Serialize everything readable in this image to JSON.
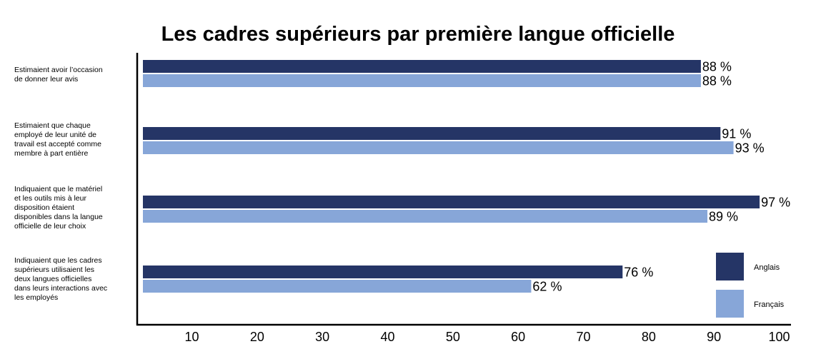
{
  "chart_data": {
    "type": "bar",
    "orientation": "horizontal",
    "title": "Les cadres supérieurs par première langue officielle",
    "xlabel": "",
    "ylabel": "",
    "xlim": [
      2.5,
      100
    ],
    "xticks": [
      10,
      20,
      30,
      40,
      50,
      60,
      70,
      80,
      90,
      100
    ],
    "grid": false,
    "legend_position": "bottom-right",
    "value_suffix": " %",
    "categories": [
      [
        "Estimaient avoir l’occasion",
        "de donner leur avis"
      ],
      [
        "Estimaient que chaque",
        "employé de leur unité de",
        "travail est accepté comme",
        "membre à part entière"
      ],
      [
        "Indiquaient que le matériel",
        "et les outils mis à leur",
        "disposition étaient",
        "disponibles dans la langue",
        "officielle de leur choix"
      ],
      [
        "Indiquaient que les cadres",
        "supérieurs utilisaient les",
        "deux langues officielles",
        "dans leurs interactions avec",
        "les employés"
      ]
    ],
    "series": [
      {
        "name": "Anglais",
        "color": "#253566",
        "values": [
          88,
          91,
          97,
          76
        ]
      },
      {
        "name": "Français",
        "color": "#87A6D8",
        "values": [
          88,
          93,
          89,
          62
        ]
      }
    ]
  }
}
